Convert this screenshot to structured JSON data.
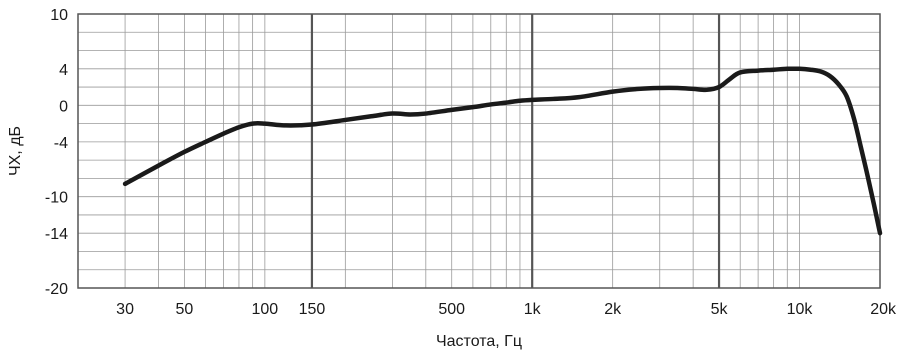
{
  "chart_data": {
    "type": "line",
    "xscale": "log",
    "xlim": [
      20,
      20000
    ],
    "ylim": [
      -20,
      10
    ],
    "xlabel": "Частота, Гц",
    "ylabel": "ЧХ, дБ",
    "grid": true,
    "x_ticks": [
      {
        "value": 30,
        "label": "30"
      },
      {
        "value": 50,
        "label": "50"
      },
      {
        "value": 100,
        "label": "100"
      },
      {
        "value": 150,
        "label": "150"
      },
      {
        "value": 500,
        "label": "500"
      },
      {
        "value": 1000,
        "label": "1k"
      },
      {
        "value": 2000,
        "label": "2k"
      },
      {
        "value": 5000,
        "label": "5k"
      },
      {
        "value": 10000,
        "label": "10k"
      },
      {
        "value": 20000,
        "label": "20k"
      }
    ],
    "y_ticks": [
      {
        "value": 10,
        "label": "10"
      },
      {
        "value": 4,
        "label": "4"
      },
      {
        "value": 0,
        "label": "0"
      },
      {
        "value": -4,
        "label": "-4"
      },
      {
        "value": -10,
        "label": "-10"
      },
      {
        "value": -14,
        "label": "-14"
      },
      {
        "value": -20,
        "label": "-20"
      }
    ],
    "y_minor_grid": [
      10,
      8,
      6,
      4,
      2,
      0,
      -2,
      -4,
      -6,
      -8,
      -10,
      -12,
      -14,
      -16,
      -18,
      -20
    ],
    "x_emphasized_grid": [
      150,
      1000,
      5000
    ],
    "series": [
      {
        "color": "#1a1a1a",
        "x": [
          30,
          40,
          50,
          60,
          70,
          80,
          90,
          100,
          120,
          150,
          200,
          250,
          300,
          350,
          400,
          500,
          600,
          700,
          800,
          900,
          1000,
          1200,
          1500,
          2000,
          2500,
          3000,
          3500,
          4000,
          4500,
          5000,
          5500,
          6000,
          7000,
          8000,
          9000,
          10000,
          11000,
          12000,
          13000,
          14000,
          15000,
          16000,
          17000,
          18000,
          19000,
          20000
        ],
        "y": [
          -8.6,
          -6.6,
          -5.1,
          -4.0,
          -3.1,
          -2.4,
          -2.0,
          -2.0,
          -2.2,
          -2.1,
          -1.6,
          -1.2,
          -0.9,
          -1.0,
          -0.9,
          -0.5,
          -0.2,
          0.1,
          0.3,
          0.5,
          0.6,
          0.7,
          0.9,
          1.5,
          1.8,
          1.9,
          1.9,
          1.8,
          1.7,
          2.0,
          2.9,
          3.6,
          3.8,
          3.9,
          4.0,
          4.0,
          3.9,
          3.7,
          3.2,
          2.3,
          1.0,
          -1.5,
          -4.7,
          -7.8,
          -10.9,
          -14.0
        ]
      }
    ]
  }
}
